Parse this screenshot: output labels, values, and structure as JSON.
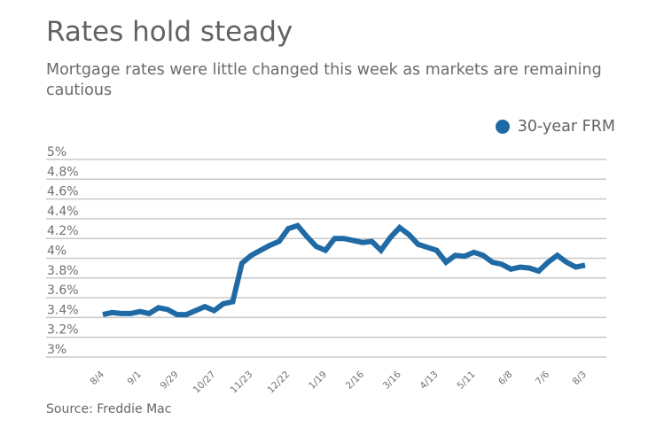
{
  "chart_data": {
    "type": "line",
    "title": "Rates hold steady",
    "subtitle": "Mortgage rates were little changed this week as markets are remaining cautious",
    "source": "Source: Freddie Mac",
    "xlabel": "",
    "ylabel": "",
    "ylim": [
      3,
      5
    ],
    "yticks": [
      "3%",
      "3.2%",
      "3.4%",
      "3.6%",
      "3.8%",
      "4%",
      "4.2%",
      "4.4%",
      "4.6%",
      "4.8%",
      "5%"
    ],
    "ytick_values": [
      3,
      3.2,
      3.4,
      3.6,
      3.8,
      4,
      4.2,
      4.4,
      4.6,
      4.8,
      5
    ],
    "xtick_labels": [
      "8/4",
      "9/1",
      "9/29",
      "10/27",
      "11/23",
      "12/22",
      "1/19",
      "2/16",
      "3/16",
      "4/13",
      "5/11",
      "6/8",
      "7/6",
      "8/3"
    ],
    "grid": true,
    "legend_placement": "top-right",
    "x": [
      "8/4",
      "8/11",
      "8/18",
      "8/25",
      "9/1",
      "9/8",
      "9/15",
      "9/22",
      "9/29",
      "10/6",
      "10/13",
      "10/20",
      "10/27",
      "11/3",
      "11/10",
      "11/17",
      "11/23",
      "12/1",
      "12/8",
      "12/15",
      "12/22",
      "12/29",
      "1/5",
      "1/12",
      "1/19",
      "1/26",
      "2/2",
      "2/9",
      "2/16",
      "2/23",
      "3/2",
      "3/9",
      "3/16",
      "3/23",
      "3/30",
      "4/6",
      "4/13",
      "4/20",
      "4/27",
      "5/4",
      "5/11",
      "5/18",
      "5/25",
      "6/1",
      "6/8",
      "6/15",
      "6/22",
      "6/29",
      "7/6",
      "7/13",
      "7/20",
      "7/27",
      "8/3"
    ],
    "series": [
      {
        "name": "30-year FRM",
        "color": "#1f6aa5",
        "values": [
          3.43,
          3.45,
          3.44,
          3.44,
          3.46,
          3.44,
          3.5,
          3.48,
          3.43,
          3.43,
          3.47,
          3.51,
          3.47,
          3.54,
          3.56,
          3.95,
          4.03,
          4.08,
          4.13,
          4.17,
          4.3,
          4.33,
          4.22,
          4.12,
          4.08,
          4.2,
          4.2,
          4.18,
          4.16,
          4.17,
          4.08,
          4.21,
          4.31,
          4.24,
          4.14,
          4.11,
          4.08,
          3.96,
          4.03,
          4.02,
          4.06,
          4.03,
          3.96,
          3.94,
          3.89,
          3.91,
          3.9,
          3.87,
          3.96,
          4.03,
          3.96,
          3.91,
          3.93
        ]
      }
    ]
  }
}
